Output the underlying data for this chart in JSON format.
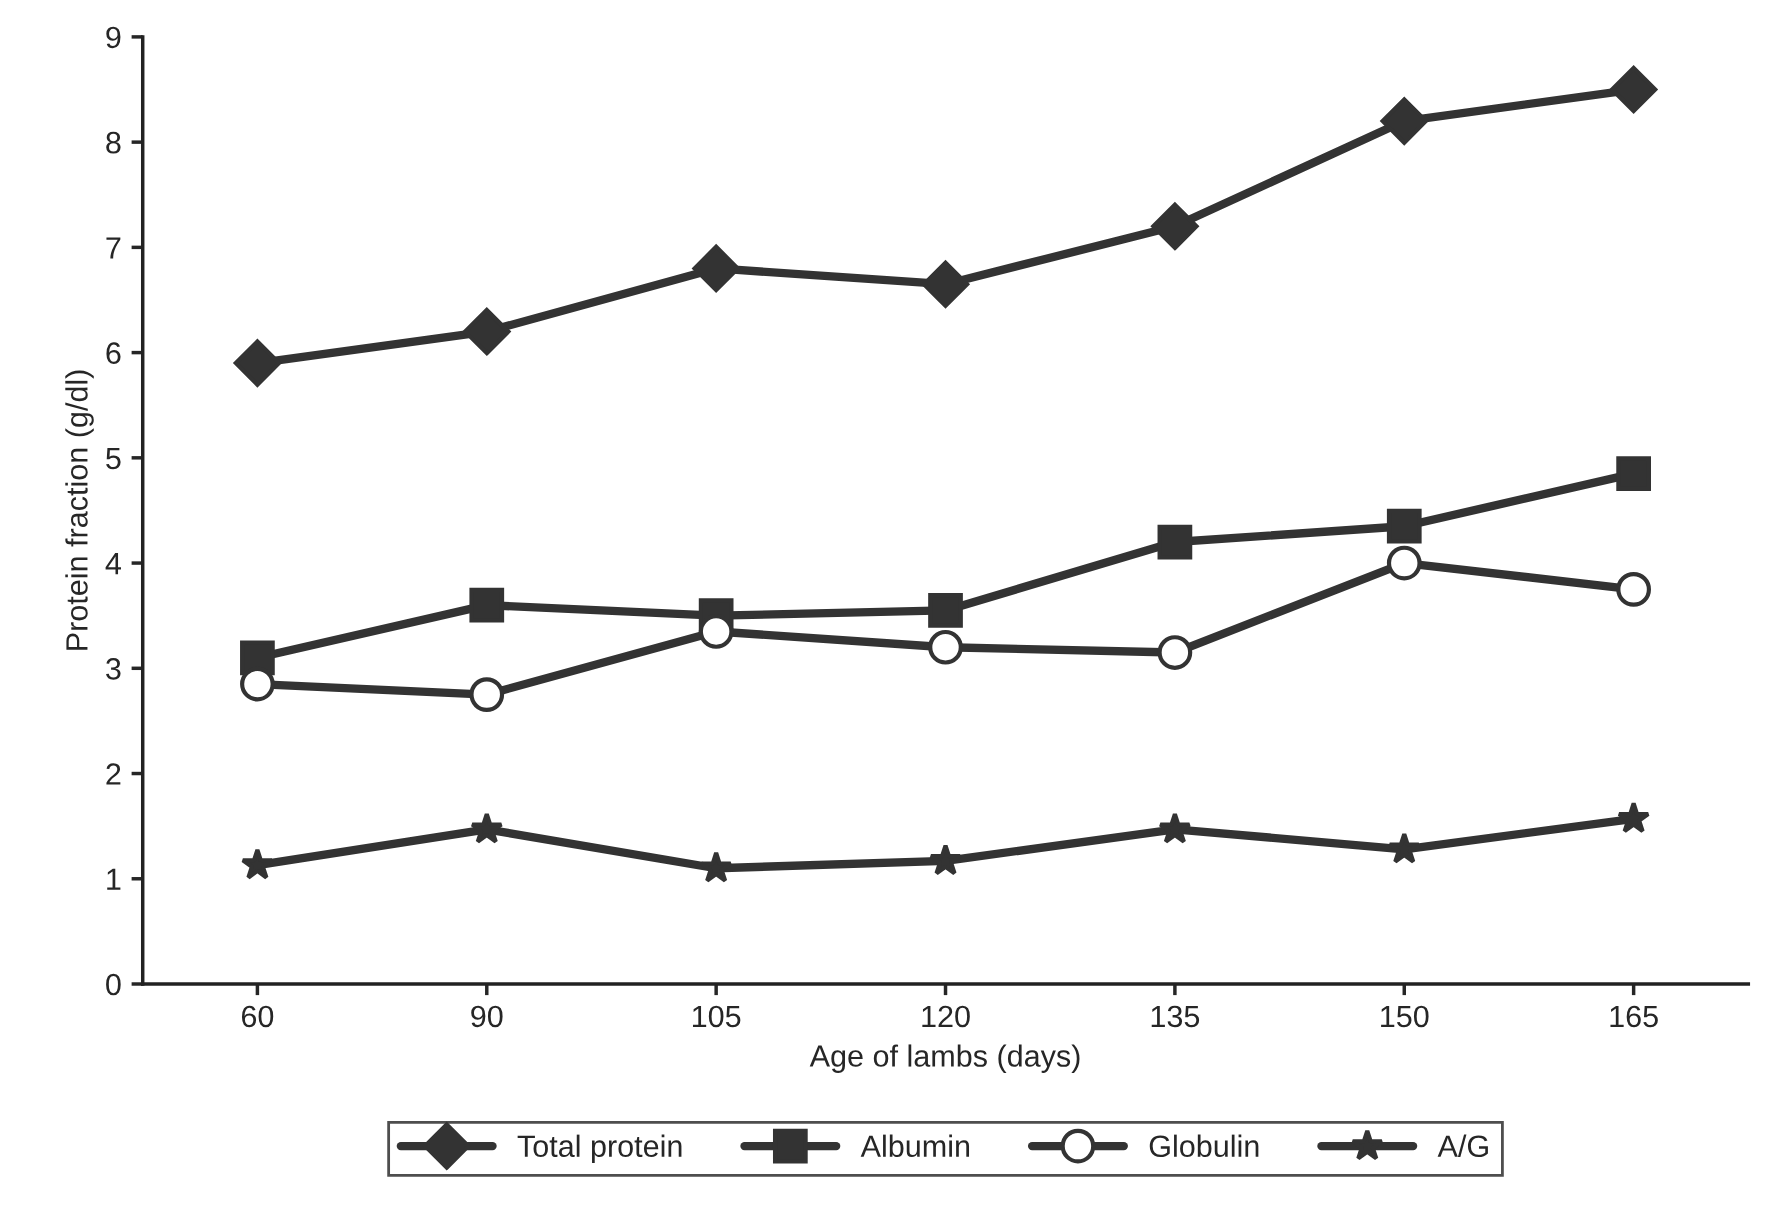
{
  "chart_data": {
    "type": "line",
    "xlabel": "Age of lambs (days)",
    "ylabel": "Protein fraction (g/dl)",
    "categories": [
      "60",
      "90",
      "105",
      "120",
      "135",
      "150",
      "165"
    ],
    "ylim": [
      0,
      9
    ],
    "yticks": [
      0,
      1,
      2,
      3,
      4,
      5,
      6,
      7,
      8,
      9
    ],
    "grid": false,
    "legend": "bottom",
    "line_style": "solid",
    "series": [
      {
        "name": "Total protein",
        "color": "#333333",
        "marker": "diamond",
        "values": [
          5.9,
          6.2,
          6.8,
          6.65,
          7.2,
          8.2,
          8.5
        ]
      },
      {
        "name": "Albumin",
        "color": "#333333",
        "marker": "square",
        "values": [
          3.1,
          3.6,
          3.5,
          3.55,
          4.2,
          4.35,
          4.85
        ]
      },
      {
        "name": "Globulin",
        "color": "#333333",
        "marker": "circle",
        "values": [
          2.85,
          2.75,
          3.35,
          3.2,
          3.15,
          4.0,
          3.75
        ]
      },
      {
        "name": "A/G",
        "color": "#333333",
        "marker": "star",
        "values": [
          1.13,
          1.47,
          1.1,
          1.17,
          1.47,
          1.28,
          1.57
        ]
      }
    ]
  }
}
